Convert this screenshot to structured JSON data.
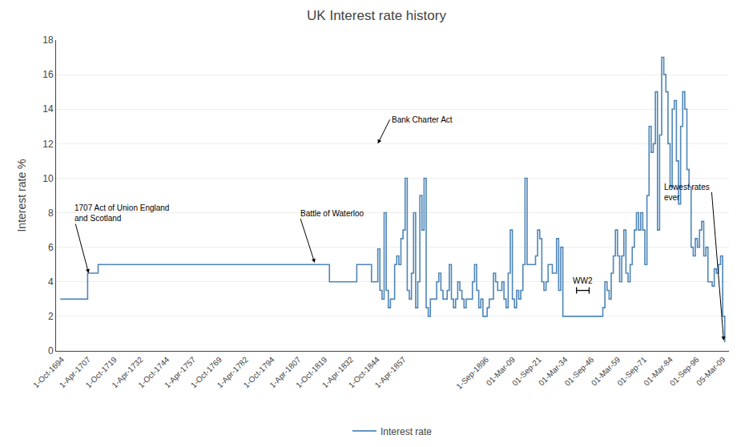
{
  "chart_data": {
    "type": "step",
    "title": "UK Interest rate history",
    "ylabel": "Interest rate %",
    "legend": "bottom",
    "grid": "y",
    "xlim": [
      1692.0,
      2012.0
    ],
    "xticks": [
      {
        "value": 1694.75,
        "label": "1-Oct-1694"
      },
      {
        "value": 1707.25,
        "label": "1-Apr-1707"
      },
      {
        "value": 1719.75,
        "label": "1-Oct-1719"
      },
      {
        "value": 1732.25,
        "label": "1-Apr-1732"
      },
      {
        "value": 1744.75,
        "label": "1-Oct-1744"
      },
      {
        "value": 1757.25,
        "label": "1-Apr-1757"
      },
      {
        "value": 1769.75,
        "label": "1-Oct-1769"
      },
      {
        "value": 1782.25,
        "label": "1-Apr-1782"
      },
      {
        "value": 1794.75,
        "label": "1-Oct-1794"
      },
      {
        "value": 1807.25,
        "label": "1-Apr-1807"
      },
      {
        "value": 1819.75,
        "label": "1-Oct-1819"
      },
      {
        "value": 1832.25,
        "label": "1-Apr-1832"
      },
      {
        "value": 1844.75,
        "label": "1-Oct-1844"
      },
      {
        "value": 1857.25,
        "label": "1-Apr-1857"
      },
      {
        "value": 1896.67,
        "label": "1-Sep-1896"
      },
      {
        "value": 1909.17,
        "label": "01-Mar-09"
      },
      {
        "value": 1921.67,
        "label": "01-Sep-21"
      },
      {
        "value": 1934.17,
        "label": "01-Mar-34"
      },
      {
        "value": 1946.67,
        "label": "01-Sep-46"
      },
      {
        "value": 1959.17,
        "label": "01-Mar-59"
      },
      {
        "value": 1971.67,
        "label": "01-Sep-71"
      },
      {
        "value": 1984.17,
        "label": "01-Mar-84"
      },
      {
        "value": 1996.67,
        "label": "01-Sep-96"
      },
      {
        "value": 2009.17,
        "label": "05-Mar-09"
      }
    ],
    "ylim": [
      0,
      18
    ],
    "yticks": [
      0,
      2,
      4,
      6,
      8,
      10,
      12,
      14,
      16,
      18
    ],
    "annotations": [
      {
        "text": "1707 Act of Union England\nand Scotland",
        "x": 1707.5,
        "y": 4.5
      },
      {
        "text": "Battle of Waterloo",
        "x": 1815.0,
        "y": 5.1
      },
      {
        "text": "Bank Charter Act",
        "x": 1845.0,
        "y": 12.0
      },
      {
        "text": "Lowest rates\never",
        "x": 2009.5,
        "y": 0.6
      },
      {
        "text": "WW2",
        "x": [
          1939.5,
          1945.5
        ],
        "y": 3.5
      }
    ],
    "x": [
      1694,
      1695,
      1696,
      1697,
      1698,
      1699,
      1700,
      1701,
      1702,
      1703,
      1704,
      1705,
      1706,
      1707,
      1708,
      1709,
      1710,
      1711,
      1712,
      1713,
      1714,
      1715,
      1716,
      1717,
      1718,
      1719,
      1720,
      1721,
      1722,
      1723,
      1724,
      1725,
      1726,
      1727,
      1728,
      1729,
      1730,
      1731,
      1732,
      1733,
      1734,
      1735,
      1736,
      1737,
      1738,
      1739,
      1740,
      1741,
      1742,
      1743,
      1744,
      1745,
      1746,
      1747,
      1748,
      1749,
      1750,
      1751,
      1752,
      1753,
      1754,
      1755,
      1756,
      1757,
      1758,
      1759,
      1760,
      1761,
      1762,
      1763,
      1764,
      1765,
      1766,
      1767,
      1768,
      1769,
      1770,
      1771,
      1772,
      1773,
      1774,
      1775,
      1776,
      1777,
      1778,
      1779,
      1780,
      1781,
      1782,
      1783,
      1784,
      1785,
      1786,
      1787,
      1788,
      1789,
      1790,
      1791,
      1792,
      1793,
      1794,
      1795,
      1796,
      1797,
      1798,
      1799,
      1800,
      1801,
      1802,
      1803,
      1804,
      1805,
      1806,
      1807,
      1808,
      1809,
      1810,
      1811,
      1812,
      1813,
      1814,
      1815,
      1816,
      1817,
      1818,
      1819,
      1820,
      1821,
      1822,
      1823,
      1824,
      1825,
      1826,
      1827,
      1828,
      1829,
      1830,
      1831,
      1832,
      1833,
      1834,
      1835,
      1836,
      1837,
      1838,
      1839,
      1840,
      1841,
      1842,
      1843,
      1844,
      1845,
      1846,
      1847,
      1848,
      1849,
      1850,
      1851,
      1852,
      1853,
      1854,
      1855,
      1856,
      1857,
      1858,
      1859,
      1860,
      1861,
      1862,
      1863,
      1864,
      1865,
      1866,
      1867,
      1868,
      1869,
      1870,
      1871,
      1872,
      1873,
      1874,
      1875,
      1876,
      1877,
      1878,
      1879,
      1880,
      1881,
      1882,
      1883,
      1884,
      1885,
      1886,
      1887,
      1888,
      1889,
      1890,
      1891,
      1892,
      1893,
      1894,
      1895,
      1896,
      1897,
      1898,
      1899,
      1900,
      1901,
      1902,
      1903,
      1904,
      1905,
      1906,
      1907,
      1908,
      1909,
      1910,
      1911,
      1912,
      1913,
      1914,
      1915,
      1916,
      1917,
      1918,
      1919,
      1920,
      1921,
      1922,
      1923,
      1924,
      1925,
      1926,
      1927,
      1928,
      1929,
      1930,
      1931,
      1932,
      1933,
      1934,
      1935,
      1936,
      1937,
      1938,
      1939,
      1940,
      1941,
      1942,
      1943,
      1944,
      1945,
      1946,
      1947,
      1948,
      1949,
      1950,
      1951,
      1952,
      1953,
      1954,
      1955,
      1956,
      1957,
      1958,
      1959,
      1960,
      1961,
      1962,
      1963,
      1964,
      1965,
      1966,
      1967,
      1968,
      1969,
      1970,
      1971,
      1972,
      1973,
      1974,
      1975,
      1976,
      1977,
      1978,
      1979,
      1980,
      1981,
      1982,
      1983,
      1984,
      1985,
      1986,
      1987,
      1988,
      1989,
      1990,
      1991,
      1992,
      1993,
      1994,
      1995,
      1996,
      1997,
      1998,
      1999,
      2000,
      2001,
      2002,
      2003,
      2004,
      2005,
      2006,
      2007,
      2008,
      2009,
      2010
    ],
    "series": [
      {
        "name": "Interest rate",
        "color": "#4E86B8",
        "values": [
          3.0,
          3.0,
          3.0,
          3.0,
          3.0,
          3.0,
          3.0,
          3.0,
          3.0,
          3.0,
          3.0,
          3.0,
          3.0,
          4.5,
          4.5,
          4.5,
          4.5,
          4.5,
          5.0,
          5.0,
          5.0,
          5.0,
          5.0,
          5.0,
          5.0,
          5.0,
          5.0,
          5.0,
          5.0,
          5.0,
          5.0,
          5.0,
          5.0,
          5.0,
          5.0,
          5.0,
          5.0,
          5.0,
          5.0,
          5.0,
          5.0,
          5.0,
          5.0,
          5.0,
          5.0,
          5.0,
          5.0,
          5.0,
          5.0,
          5.0,
          5.0,
          5.0,
          5.0,
          5.0,
          5.0,
          5.0,
          5.0,
          5.0,
          5.0,
          5.0,
          5.0,
          5.0,
          5.0,
          5.0,
          5.0,
          5.0,
          5.0,
          5.0,
          5.0,
          5.0,
          5.0,
          5.0,
          5.0,
          5.0,
          5.0,
          5.0,
          5.0,
          5.0,
          5.0,
          5.0,
          5.0,
          5.0,
          5.0,
          5.0,
          5.0,
          5.0,
          5.0,
          5.0,
          5.0,
          5.0,
          5.0,
          5.0,
          5.0,
          5.0,
          5.0,
          5.0,
          5.0,
          5.0,
          5.0,
          5.0,
          5.0,
          5.0,
          5.0,
          5.0,
          5.0,
          5.0,
          5.0,
          5.0,
          5.0,
          5.0,
          5.0,
          5.0,
          5.0,
          5.0,
          5.0,
          5.0,
          5.0,
          5.0,
          5.0,
          5.0,
          5.0,
          5.0,
          5.0,
          5.0,
          5.0,
          5.0,
          5.0,
          5.0,
          4.0,
          4.0,
          4.0,
          4.0,
          4.0,
          4.0,
          4.0,
          4.0,
          4.0,
          4.0,
          4.0,
          4.0,
          4.0,
          5.0,
          5.0,
          5.0,
          5.0,
          5.0,
          5.0,
          5.0,
          4.0,
          4.0,
          4.0,
          5.9,
          3.5,
          3.0,
          8.0,
          3.5,
          2.5,
          3.0,
          3.0,
          5.0,
          5.5,
          5.0,
          6.5,
          7.0,
          10.0,
          3.5,
          3.0,
          4.5,
          8.0,
          2.5,
          4.0,
          9.0,
          7.0,
          10.0,
          2.5,
          2.0,
          3.0,
          3.0,
          3.0,
          4.0,
          4.5,
          3.5,
          3.0,
          3.0,
          3.5,
          5.0,
          3.0,
          2.5,
          3.0,
          4.0,
          3.5,
          3.0,
          2.5,
          3.0,
          3.0,
          3.0,
          4.0,
          5.0,
          3.5,
          2.5,
          3.0,
          2.0,
          2.0,
          2.5,
          3.0,
          3.0,
          4.5,
          4.0,
          3.5,
          3.5,
          4.0,
          3.0,
          2.5,
          4.5,
          7.0,
          3.0,
          2.5,
          3.5,
          3.0,
          3.5,
          5.0,
          10.0,
          5.0,
          5.0,
          5.0,
          5.0,
          5.5,
          7.0,
          6.5,
          4.0,
          3.5,
          4.0,
          5.0,
          5.0,
          4.5,
          4.5,
          6.5,
          3.5,
          6.0,
          2.0,
          2.0,
          2.0,
          2.0,
          2.0,
          2.0,
          2.0,
          2.0,
          2.0,
          2.0,
          2.0,
          2.0,
          2.0,
          2.0,
          2.0,
          2.0,
          2.0,
          2.0,
          2.0,
          2.5,
          4.0,
          3.5,
          3.0,
          4.5,
          5.5,
          7.0,
          5.5,
          4.0,
          5.5,
          7.0,
          4.5,
          4.0,
          5.0,
          6.0,
          7.0,
          8.0,
          7.0,
          8.0,
          7.0,
          5.0,
          9.0,
          13.0,
          11.5,
          12.0,
          15.0,
          7.0,
          12.5,
          17.0,
          16.0,
          15.0,
          12.0,
          9.5,
          14.0,
          14.5,
          11.0,
          8.5,
          13.0,
          15.0,
          14.0,
          10.5,
          9.5,
          6.0,
          5.5,
          6.5,
          6.0,
          7.0,
          7.5,
          5.5,
          6.0,
          4.0,
          4.0,
          3.75,
          4.75,
          4.5,
          5.0,
          5.5,
          2.0,
          0.5
        ]
      }
    ]
  }
}
